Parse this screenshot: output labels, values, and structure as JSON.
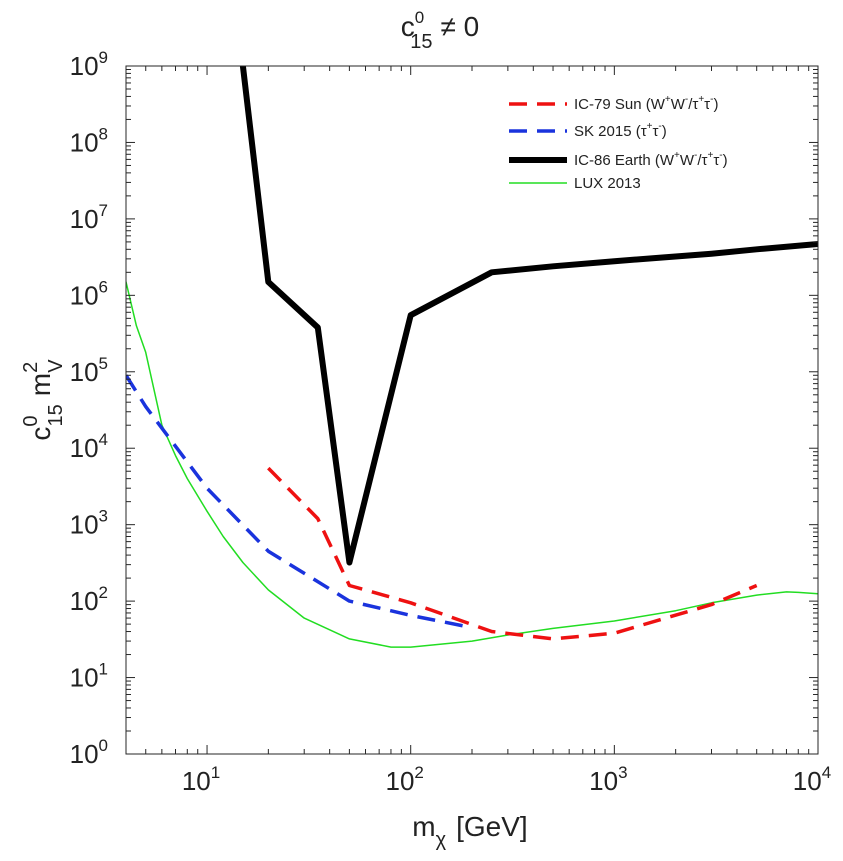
{
  "chart_data": {
    "type": "line",
    "title": {
      "main": "c",
      "sup": "0",
      "sub": "15",
      "rest": "≠ 0"
    },
    "xlabel": {
      "main": "m",
      "sub": "χ",
      "rest": "[GeV]"
    },
    "ylabel": {
      "main": "c",
      "sup": "0",
      "sub": "15",
      "rest": "m",
      "sup2": "2",
      "sub2": "V"
    },
    "xscale": "log",
    "yscale": "log",
    "xlim": [
      4,
      10000
    ],
    "ylim": [
      1,
      1000000000
    ],
    "x_ticks": [
      {
        "value": 10,
        "base": "10",
        "exp": "1"
      },
      {
        "value": 100,
        "base": "10",
        "exp": "2"
      },
      {
        "value": 1000,
        "base": "10",
        "exp": "3"
      },
      {
        "value": 10000,
        "base": "10",
        "exp": "4"
      }
    ],
    "y_ticks": [
      {
        "value": 1,
        "base": "10",
        "exp": "0"
      },
      {
        "value": 10,
        "base": "10",
        "exp": "1"
      },
      {
        "value": 100,
        "base": "10",
        "exp": "2"
      },
      {
        "value": 1000,
        "base": "10",
        "exp": "3"
      },
      {
        "value": 10000,
        "base": "10",
        "exp": "4"
      },
      {
        "value": 100000,
        "base": "10",
        "exp": "5"
      },
      {
        "value": 1000000,
        "base": "10",
        "exp": "6"
      },
      {
        "value": 10000000,
        "base": "10",
        "exp": "7"
      },
      {
        "value": 100000000,
        "base": "10",
        "exp": "8"
      },
      {
        "value": 1000000000,
        "base": "10",
        "exp": "9"
      }
    ],
    "legend_position": "top-right",
    "series": [
      {
        "name": "IC-79 Sun (W⁺W⁻/τ⁺τ⁻)",
        "legend": [
          {
            "t": "IC-79 Sun (W"
          },
          {
            "t": "+",
            "sup": true
          },
          {
            "t": "W"
          },
          {
            "t": "-",
            "sup": true
          },
          {
            "t": "/τ"
          },
          {
            "t": "+",
            "sup": true
          },
          {
            "t": "τ"
          },
          {
            "t": "-",
            "sup": true
          },
          {
            "t": ")"
          }
        ],
        "color": "#ee1111",
        "style": "dashed",
        "width": 3.5,
        "x": [
          20,
          35,
          50,
          100,
          250,
          500,
          1000,
          3000,
          5000
        ],
        "y": [
          5500,
          1200,
          160,
          95,
          40,
          32,
          38,
          90,
          160
        ]
      },
      {
        "name": "SK 2015 (τ⁺τ⁻)",
        "legend": [
          {
            "t": "SK 2015 (τ"
          },
          {
            "t": "+",
            "sup": true
          },
          {
            "t": "τ"
          },
          {
            "t": "-",
            "sup": true
          },
          {
            "t": ")"
          }
        ],
        "color": "#1a33dd",
        "style": "dashed",
        "width": 3.5,
        "x": [
          4,
          5,
          10,
          20,
          50,
          100,
          200
        ],
        "y": [
          90000,
          35000,
          3000,
          450,
          100,
          65,
          45
        ]
      },
      {
        "name": "IC-86 Earth (W⁺W⁻/τ⁺τ⁻)",
        "legend": [
          {
            "t": "IC-86 Earth (W"
          },
          {
            "t": "+",
            "sup": true
          },
          {
            "t": "W"
          },
          {
            "t": "-",
            "sup": true
          },
          {
            "t": "/τ"
          },
          {
            "t": "+",
            "sup": true
          },
          {
            "t": "τ"
          },
          {
            "t": "-",
            "sup": true
          },
          {
            "t": ")"
          }
        ],
        "color": "#000000",
        "style": "solid",
        "width": 6,
        "x": [
          15,
          20,
          35,
          50,
          100,
          250,
          500,
          1000,
          3000,
          5000,
          10000
        ],
        "y": [
          1000000000,
          1500000,
          380000,
          320,
          550000,
          2000000,
          2400000,
          2800000,
          3500000,
          4000000,
          4700000
        ]
      },
      {
        "name": "LUX 2013",
        "legend": [
          {
            "t": "LUX 2013"
          }
        ],
        "color": "#22dd22",
        "style": "solid",
        "width": 1.5,
        "x": [
          4,
          4.5,
          5,
          6,
          7,
          8,
          10,
          12,
          15,
          20,
          30,
          50,
          80,
          100,
          200,
          300,
          500,
          1000,
          2000,
          3000,
          5000,
          7000,
          8000,
          10000
        ],
        "y": [
          1500000,
          400000,
          180000,
          20000,
          8000,
          4000,
          1500,
          700,
          320,
          140,
          60,
          32,
          25,
          25,
          30,
          36,
          44,
          55,
          75,
          95,
          120,
          132,
          130,
          125
        ]
      }
    ]
  }
}
